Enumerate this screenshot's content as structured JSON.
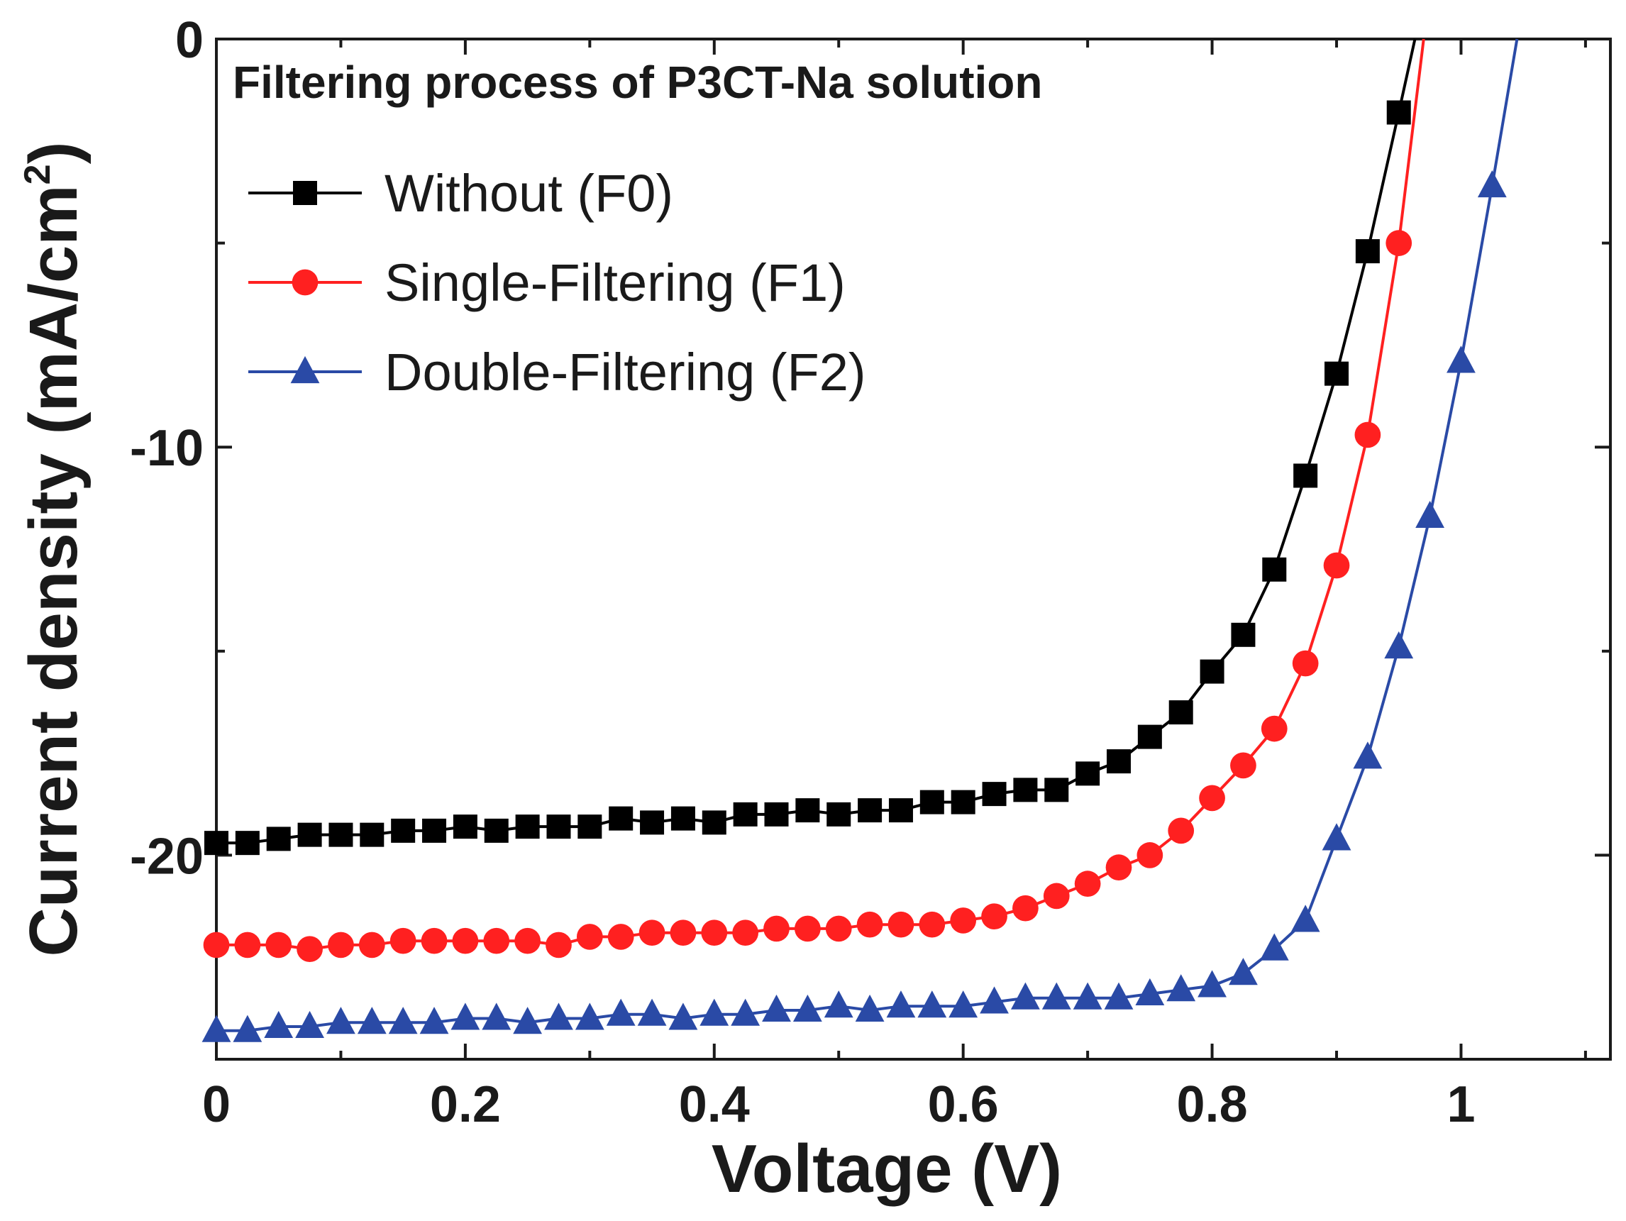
{
  "chart_data": {
    "type": "line",
    "title": "Filtering process of P3CT-Na solution",
    "xlabel": "Voltage (V)",
    "ylabel_main": "Current density (mA/cm",
    "ylabel_sup": "2",
    "ylabel_close": ")",
    "xlim": [
      0,
      1.12
    ],
    "ylim": [
      -25,
      0
    ],
    "xticks": [
      0,
      0.2,
      0.4,
      0.6,
      0.8,
      1
    ],
    "xtick_labels": [
      "0",
      "0.2",
      "0.4",
      "0.6",
      "0.8",
      "1"
    ],
    "yticks": [
      0,
      -10,
      -20
    ],
    "ytick_labels": [
      "0",
      "-10",
      "-20"
    ],
    "legend_position": "top-left",
    "series": [
      {
        "name": "Without (F0)",
        "color": "#000000",
        "marker": "square",
        "x": [
          0,
          0.025,
          0.05,
          0.075,
          0.1,
          0.125,
          0.15,
          0.175,
          0.2,
          0.225,
          0.25,
          0.275,
          0.3,
          0.325,
          0.35,
          0.375,
          0.4,
          0.425,
          0.45,
          0.475,
          0.5,
          0.525,
          0.55,
          0.575,
          0.6,
          0.625,
          0.65,
          0.675,
          0.7,
          0.725,
          0.75,
          0.775,
          0.8,
          0.825,
          0.85,
          0.875,
          0.9,
          0.925,
          0.95,
          0.963
        ],
        "y": [
          -19.7,
          -19.7,
          -19.6,
          -19.5,
          -19.5,
          -19.5,
          -19.4,
          -19.4,
          -19.3,
          -19.4,
          -19.3,
          -19.3,
          -19.3,
          -19.1,
          -19.2,
          -19.1,
          -19.2,
          -19.0,
          -19.0,
          -18.9,
          -19.0,
          -18.9,
          -18.9,
          -18.7,
          -18.7,
          -18.5,
          -18.4,
          -18.4,
          -18.0,
          -17.7,
          -17.1,
          -16.5,
          -15.5,
          -14.6,
          -13.0,
          -10.7,
          -8.2,
          -5.2,
          -1.8,
          0
        ],
        "markers_until": 39
      },
      {
        "name": "Single-Filtering (F1)",
        "color": "#ff2020",
        "marker": "circle",
        "x": [
          0,
          0.025,
          0.05,
          0.075,
          0.1,
          0.125,
          0.15,
          0.175,
          0.2,
          0.225,
          0.25,
          0.275,
          0.3,
          0.325,
          0.35,
          0.375,
          0.4,
          0.425,
          0.45,
          0.475,
          0.5,
          0.525,
          0.55,
          0.575,
          0.6,
          0.625,
          0.65,
          0.675,
          0.7,
          0.725,
          0.75,
          0.775,
          0.8,
          0.825,
          0.85,
          0.875,
          0.9,
          0.925,
          0.95,
          0.97
        ],
        "y": [
          -22.2,
          -22.2,
          -22.2,
          -22.3,
          -22.2,
          -22.2,
          -22.1,
          -22.1,
          -22.1,
          -22.1,
          -22.1,
          -22.2,
          -22.0,
          -22.0,
          -21.9,
          -21.9,
          -21.9,
          -21.9,
          -21.8,
          -21.8,
          -21.8,
          -21.7,
          -21.7,
          -21.7,
          -21.6,
          -21.5,
          -21.3,
          -21.0,
          -20.7,
          -20.3,
          -20.0,
          -19.4,
          -18.6,
          -17.8,
          -16.9,
          -15.3,
          -12.9,
          -9.7,
          -5.0,
          0
        ],
        "markers_until": 39
      },
      {
        "name": "Double-Filtering (F2)",
        "color": "#2a4aa6",
        "marker": "triangle",
        "x": [
          0,
          0.025,
          0.05,
          0.075,
          0.1,
          0.125,
          0.15,
          0.175,
          0.2,
          0.225,
          0.25,
          0.275,
          0.3,
          0.325,
          0.35,
          0.375,
          0.4,
          0.425,
          0.45,
          0.475,
          0.5,
          0.525,
          0.55,
          0.575,
          0.6,
          0.625,
          0.65,
          0.675,
          0.7,
          0.725,
          0.75,
          0.775,
          0.8,
          0.825,
          0.85,
          0.875,
          0.9,
          0.925,
          0.95,
          0.975,
          1.0,
          1.025,
          1.045
        ],
        "y": [
          -24.3,
          -24.3,
          -24.2,
          -24.2,
          -24.1,
          -24.1,
          -24.1,
          -24.1,
          -24.0,
          -24.0,
          -24.1,
          -24.0,
          -24.0,
          -23.9,
          -23.9,
          -24.0,
          -23.9,
          -23.9,
          -23.8,
          -23.8,
          -23.7,
          -23.8,
          -23.7,
          -23.7,
          -23.7,
          -23.6,
          -23.5,
          -23.5,
          -23.5,
          -23.5,
          -23.4,
          -23.3,
          -23.2,
          -22.9,
          -22.3,
          -21.6,
          -19.6,
          -17.6,
          -14.9,
          -11.7,
          -7.9,
          -3.6,
          0
        ],
        "markers_until": 42
      }
    ]
  }
}
